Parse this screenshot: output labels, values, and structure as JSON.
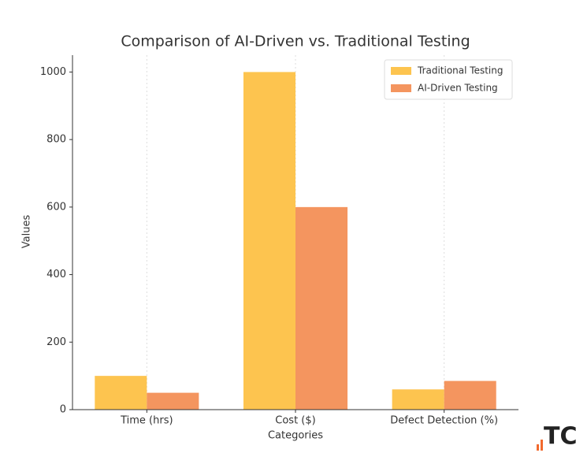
{
  "chart_data": {
    "type": "bar",
    "title": "Comparison of AI-Driven vs. Traditional Testing",
    "x_label": "Categories",
    "y_label": "Values",
    "categories": [
      "Time (hrs)",
      "Cost ($)",
      "Defect Detection (%)"
    ],
    "series": [
      {
        "name": "Traditional Testing",
        "color": "#fdc44f",
        "values": [
          100,
          1000,
          60
        ]
      },
      {
        "name": "AI-Driven Testing",
        "color": "#f4955f",
        "values": [
          50,
          600,
          85
        ]
      }
    ],
    "ylim": [
      0,
      1050
    ],
    "yticks": [
      0,
      200,
      400,
      600,
      800,
      1000
    ],
    "grid": "x",
    "legend": "upper-right"
  },
  "logo": {
    "text": "TC"
  }
}
